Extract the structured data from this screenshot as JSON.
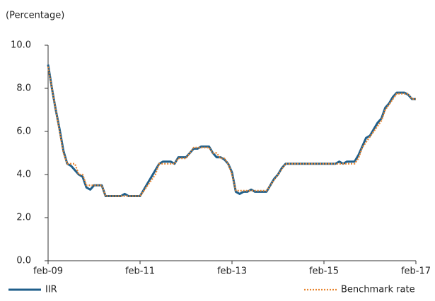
{
  "chart_data": {
    "type": "line",
    "y_label": "(Percentage)",
    "categories": [
      "feb-09",
      null,
      null,
      null,
      null,
      null,
      null,
      null,
      null,
      null,
      null,
      null,
      null,
      null,
      null,
      null,
      null,
      null,
      null,
      null,
      null,
      null,
      null,
      null,
      "feb-11",
      null,
      null,
      null,
      null,
      null,
      null,
      null,
      null,
      null,
      null,
      null,
      null,
      null,
      null,
      null,
      null,
      null,
      null,
      null,
      null,
      null,
      null,
      null,
      "feb-13",
      null,
      null,
      null,
      null,
      null,
      null,
      null,
      null,
      null,
      null,
      null,
      null,
      null,
      null,
      null,
      null,
      null,
      null,
      null,
      null,
      null,
      null,
      null,
      "feb-15",
      null,
      null,
      null,
      null,
      null,
      null,
      null,
      null,
      null,
      null,
      null,
      null,
      null,
      null,
      null,
      null,
      null,
      null,
      null,
      null,
      null,
      null,
      null,
      "feb-17"
    ],
    "series": [
      {
        "name": "IIR",
        "color": "#1f5f8b",
        "style": "solid",
        "values": [
          9.1,
          8.0,
          7.0,
          6.1,
          5.1,
          4.5,
          4.4,
          4.2,
          4.0,
          3.9,
          3.4,
          3.3,
          3.5,
          3.5,
          3.5,
          3.0,
          3.0,
          3.0,
          3.0,
          3.0,
          3.1,
          3.0,
          3.0,
          3.0,
          3.0,
          3.3,
          3.6,
          3.9,
          4.2,
          4.5,
          4.6,
          4.6,
          4.6,
          4.5,
          4.8,
          4.8,
          4.8,
          5.0,
          5.2,
          5.2,
          5.3,
          5.3,
          5.3,
          5.0,
          4.8,
          4.8,
          4.7,
          4.5,
          4.1,
          3.2,
          3.1,
          3.2,
          3.2,
          3.3,
          3.2,
          3.2,
          3.2,
          3.2,
          3.5,
          3.8,
          4.0,
          4.3,
          4.5,
          4.5,
          4.5,
          4.5,
          4.5,
          4.5,
          4.5,
          4.5,
          4.5,
          4.5,
          4.5,
          4.5,
          4.5,
          4.5,
          4.6,
          4.5,
          4.6,
          4.6,
          4.6,
          4.9,
          5.3,
          5.7,
          5.8,
          6.1,
          6.4,
          6.6,
          7.1,
          7.3,
          7.6,
          7.8,
          7.8,
          7.8,
          7.7,
          7.5,
          7.5
        ]
      },
      {
        "name": "Benchmark rate",
        "color": "#e8842e",
        "style": "dotted",
        "values": [
          9.0,
          8.0,
          7.0,
          6.0,
          5.0,
          4.5,
          4.5,
          4.5,
          4.0,
          4.0,
          3.5,
          3.5,
          3.5,
          3.5,
          3.5,
          3.0,
          3.0,
          3.0,
          3.0,
          3.0,
          3.0,
          3.0,
          3.0,
          3.0,
          3.0,
          3.25,
          3.5,
          3.75,
          4.0,
          4.5,
          4.5,
          4.5,
          4.5,
          4.5,
          4.75,
          4.75,
          4.75,
          5.0,
          5.25,
          5.25,
          5.25,
          5.25,
          5.25,
          5.0,
          5.0,
          4.75,
          4.75,
          4.5,
          4.0,
          3.25,
          3.25,
          3.25,
          3.25,
          3.25,
          3.25,
          3.25,
          3.25,
          3.25,
          3.5,
          3.75,
          4.0,
          4.25,
          4.5,
          4.5,
          4.5,
          4.5,
          4.5,
          4.5,
          4.5,
          4.5,
          4.5,
          4.5,
          4.5,
          4.5,
          4.5,
          4.5,
          4.5,
          4.5,
          4.5,
          4.5,
          4.5,
          4.75,
          5.25,
          5.5,
          5.75,
          6.0,
          6.25,
          6.5,
          7.0,
          7.25,
          7.5,
          7.75,
          7.75,
          7.75,
          7.75,
          7.5,
          7.5
        ]
      }
    ],
    "ylim": [
      0,
      10
    ],
    "yticks": [
      {
        "value": 0,
        "label": "0.0"
      },
      {
        "value": 2,
        "label": "2.0"
      },
      {
        "value": 4,
        "label": "4.0"
      },
      {
        "value": 6,
        "label": "6.0"
      },
      {
        "value": 8,
        "label": "8.0"
      },
      {
        "value": 10,
        "label": "10.0"
      }
    ],
    "grid": false,
    "legend": "bottom"
  }
}
